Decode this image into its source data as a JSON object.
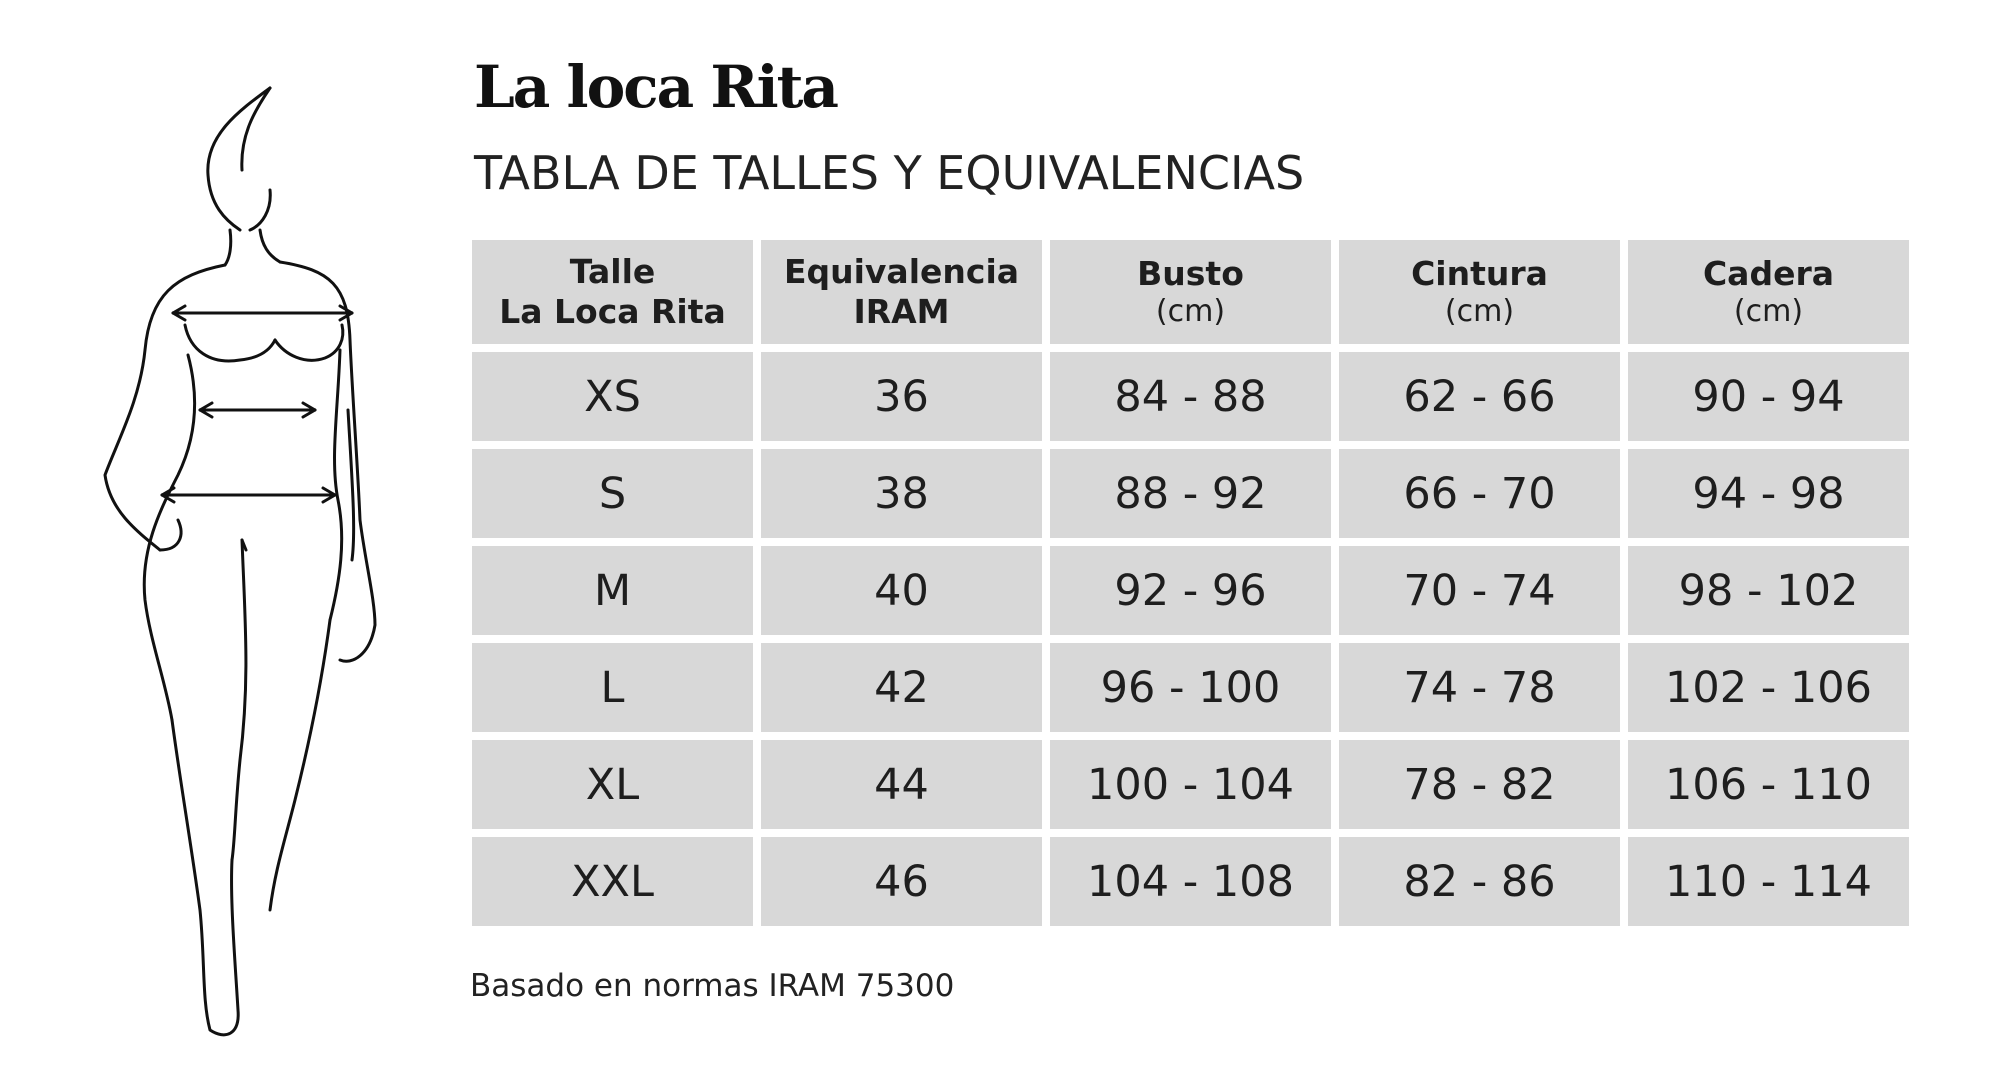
{
  "brand": "La loca Rita",
  "subtitle": "TABLA DE TALLES Y EQUIVALENCIAS",
  "table": {
    "headers": [
      {
        "line1": "Talle",
        "line2": "La Loca Rita",
        "unit": ""
      },
      {
        "line1": "Equivalencia",
        "line2": "IRAM",
        "unit": ""
      },
      {
        "line1": "Busto",
        "line2": "",
        "unit": "(cm)"
      },
      {
        "line1": "Cintura",
        "line2": "",
        "unit": "(cm)"
      },
      {
        "line1": "Cadera",
        "line2": "",
        "unit": "(cm)"
      }
    ],
    "rows": [
      [
        "XS",
        "36",
        "84 - 88",
        "62 - 66",
        "90 - 94"
      ],
      [
        "S",
        "38",
        "88 - 92",
        "66 - 70",
        "94 - 98"
      ],
      [
        "M",
        "40",
        "92 - 96",
        "70 - 74",
        "98 - 102"
      ],
      [
        "L",
        "42",
        "96 - 100",
        "74 - 78",
        "102 - 106"
      ],
      [
        "XL",
        "44",
        "100 - 104",
        "78 - 82",
        "106 - 110"
      ],
      [
        "XXL",
        "46",
        "104 - 108",
        "82 - 86",
        "110 - 114"
      ]
    ]
  },
  "footnote": "Basado en normas IRAM 75300",
  "figure": {
    "icon": "body-outline-icon",
    "line_color": "#111111"
  },
  "colors": {
    "cell_background": "#d8d8d8",
    "text": "#1e1e1e"
  }
}
